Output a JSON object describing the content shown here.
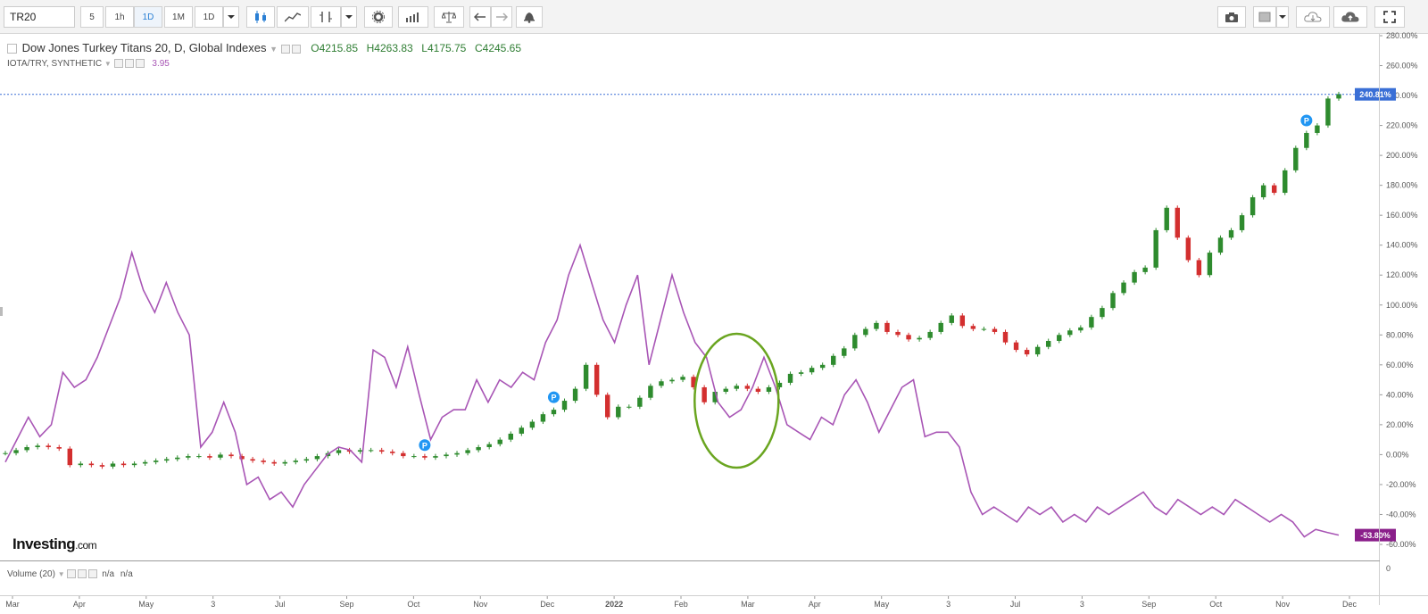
{
  "toolbar": {
    "symbol": "TR20",
    "intervals": [
      "5",
      "1h",
      "1D",
      "1M",
      "1D"
    ],
    "active_interval": 2
  },
  "legend": {
    "title": "Dow Jones Turkey Titans 20, D, Global Indexes",
    "open": "O4215.85",
    "high": "H4263.83",
    "low": "L4175.75",
    "close": "C4245.65",
    "compare_name": "IOTA/TRY, SYNTHETIC",
    "compare_value": "3.95"
  },
  "volume": {
    "label": "Volume (20)",
    "v1": "n/a",
    "v2": "n/a"
  },
  "watermark": {
    "brand": "Investing",
    "suffix": ".com"
  },
  "colors": {
    "up": "#2e8b2e",
    "down": "#d32f2f",
    "compare": "#a855b5",
    "last": "#3a6fd6",
    "last_compare": "#8a1f8a",
    "circle": "#6aa520",
    "marker": "#2196f3"
  },
  "chart_data": {
    "type": "candlestick-line",
    "yaxis": {
      "min": -60,
      "max": 280,
      "ticks": [
        "280.00%",
        "260.00%",
        "240.00%",
        "220.00%",
        "200.00%",
        "180.00%",
        "160.00%",
        "140.00%",
        "120.00%",
        "100.00%",
        "80.00%",
        "60.00%",
        "40.00%",
        "20.00%",
        "0.00%",
        "-20.00%",
        "-40.00%",
        "-60.00%"
      ]
    },
    "xaxis": {
      "ticks": [
        "Mar",
        "Apr",
        "May",
        "3",
        "Jul",
        "Sep",
        "Oct",
        "Nov",
        "Dec",
        "2022",
        "Feb",
        "Mar",
        "Apr",
        "May",
        "3",
        "Jul",
        "3",
        "Sep",
        "Oct",
        "Nov",
        "Dec"
      ]
    },
    "last_labels": {
      "main": "240.81%",
      "compare": "-53.80%"
    },
    "volume_axis_tick": "0",
    "series": [
      {
        "name": "Dow Jones Turkey Titans 20",
        "style": "candles",
        "values": [
          1,
          3,
          5,
          6,
          5,
          4,
          -7,
          -6,
          -7,
          -8,
          -6,
          -7,
          -6,
          -5,
          -4,
          -3,
          -2,
          -1,
          -1,
          -2,
          0,
          -1,
          -3,
          -4,
          -5,
          -6,
          -5,
          -4,
          -3,
          -1,
          1,
          3,
          2,
          3,
          3,
          2,
          1,
          -1,
          -1,
          -2,
          -1,
          0,
          1,
          3,
          5,
          7,
          10,
          14,
          18,
          22,
          27,
          30,
          36,
          44,
          60,
          40,
          25,
          32,
          32,
          38,
          46,
          49,
          50,
          52,
          45,
          35,
          42,
          44,
          46,
          44,
          42,
          45,
          48,
          54,
          55,
          58,
          60,
          66,
          71,
          80,
          84,
          88,
          82,
          80,
          77,
          78,
          82,
          88,
          93,
          86,
          84,
          84,
          82,
          75,
          70,
          67,
          72,
          76,
          80,
          83,
          85,
          92,
          98,
          108,
          115,
          122,
          125,
          150,
          165,
          145,
          130,
          120,
          135,
          145,
          150,
          160,
          172,
          180,
          175,
          190,
          205,
          215,
          220,
          238,
          241
        ]
      },
      {
        "name": "IOTA/TRY, SYNTHETIC",
        "style": "line",
        "values": [
          -5,
          10,
          25,
          12,
          20,
          55,
          45,
          50,
          65,
          85,
          105,
          135,
          110,
          95,
          115,
          95,
          80,
          5,
          15,
          35,
          15,
          -20,
          -15,
          -30,
          -25,
          -35,
          -20,
          -10,
          0,
          5,
          3,
          -5,
          70,
          65,
          45,
          72,
          40,
          10,
          25,
          30,
          30,
          50,
          35,
          50,
          45,
          55,
          50,
          75,
          90,
          120,
          140,
          115,
          90,
          75,
          100,
          120,
          60,
          90,
          120,
          95,
          75,
          65,
          35,
          25,
          30,
          45,
          65,
          45,
          20,
          15,
          10,
          25,
          20,
          40,
          50,
          35,
          15,
          30,
          45,
          50,
          12,
          15,
          15,
          5,
          -25,
          -40,
          -35,
          -40,
          -45,
          -35,
          -40,
          -35,
          -45,
          -40,
          -45,
          -35,
          -40,
          -35,
          -30,
          -25,
          -35,
          -40,
          -30,
          -35,
          -40,
          -35,
          -40,
          -30,
          -35,
          -40,
          -45,
          -40,
          -45,
          -55,
          -50,
          -52,
          -53.8
        ]
      }
    ],
    "annotations": {
      "markers": [
        "P",
        "P",
        "P"
      ]
    }
  }
}
